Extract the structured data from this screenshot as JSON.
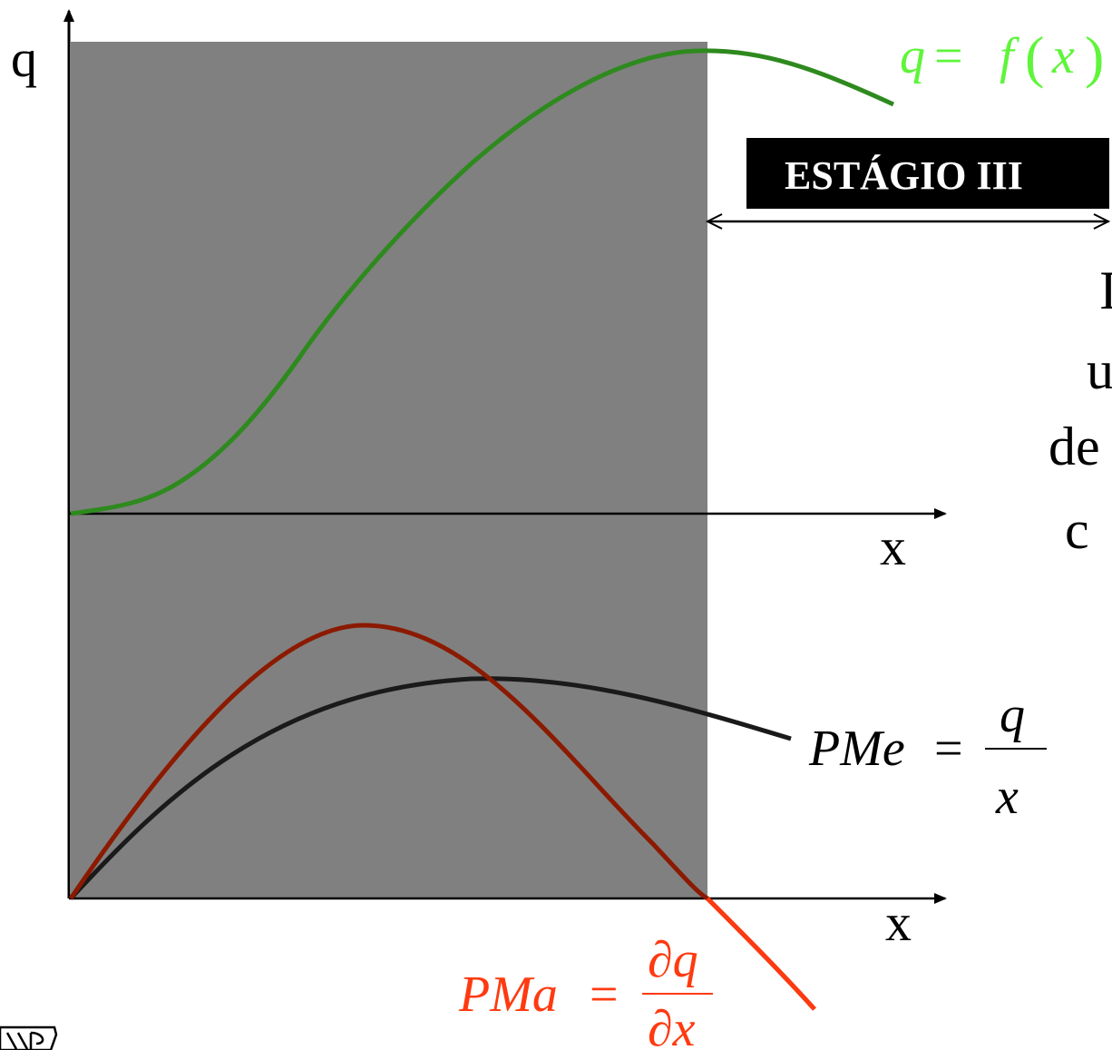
{
  "axes": {
    "top_y_label": "q",
    "top_x_label": "x",
    "bottom_x_label": "x"
  },
  "stage_label": "ESTÁGIO III",
  "clipped_text": [
    "I",
    "u",
    "de",
    "c"
  ],
  "curves": {
    "production": {
      "lhs": "q",
      "eq": "=",
      "fn": "f",
      "arg": "x",
      "color": "#2e8a1e",
      "label_color": "#5ef53a"
    },
    "average_product": {
      "lhs": "PMe",
      "eq": "=",
      "num": "q",
      "den": "x",
      "color": "#1a1a1a"
    },
    "marginal_product": {
      "lhs": "PMa",
      "eq": "=",
      "num": "∂q",
      "den": "∂x",
      "color": "#8b1a00",
      "label_color": "#ff3a10"
    }
  },
  "colors": {
    "shade": "#808080",
    "axis": "#000000",
    "stage_box": "#000000",
    "stage_text": "#ffffff"
  },
  "logo_text": "USP"
}
